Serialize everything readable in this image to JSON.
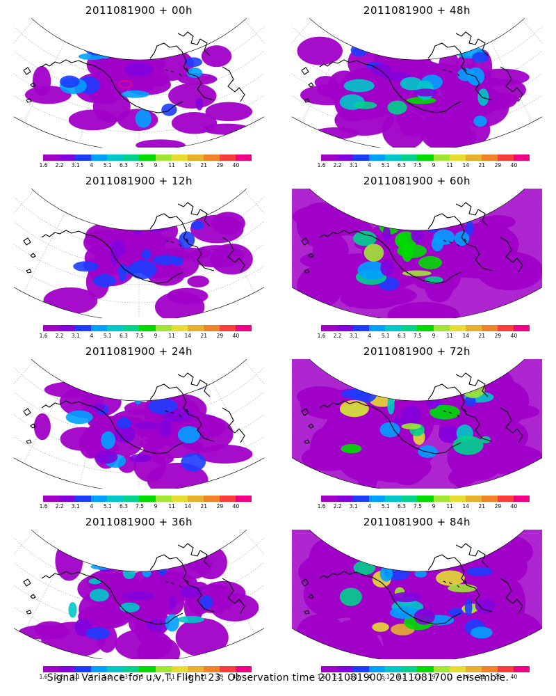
{
  "panels": [
    {
      "title": "2011081900 + 00h",
      "lead_hours": 0
    },
    {
      "title": "2011081900 + 48h",
      "lead_hours": 48
    },
    {
      "title": "2011081900 + 12h",
      "lead_hours": 12
    },
    {
      "title": "2011081900 + 60h",
      "lead_hours": 60
    },
    {
      "title": "2011081900 + 24h",
      "lead_hours": 24
    },
    {
      "title": "2011081900 + 72h",
      "lead_hours": 72
    },
    {
      "title": "2011081900 + 36h",
      "lead_hours": 36
    },
    {
      "title": "2011081900 + 84h",
      "lead_hours": 84
    }
  ],
  "colorbar": {
    "labels": [
      "1.6",
      "2.2",
      "3.1",
      "4",
      "5.1",
      "6.3",
      "7.5",
      "9",
      "11",
      "14",
      "21",
      "29",
      "40"
    ],
    "colors": [
      "#a000c8",
      "#8200dc",
      "#1e3cff",
      "#00a0ff",
      "#00c8c8",
      "#00d28c",
      "#00dc00",
      "#a0e632",
      "#e6dc32",
      "#e6af2d",
      "#f08228",
      "#fa3c3c",
      "#f00082"
    ]
  },
  "footer": "Signal Variance for u,v,T. Flight 23. Observation time 2011081900. 2011081700 ensemble."
}
